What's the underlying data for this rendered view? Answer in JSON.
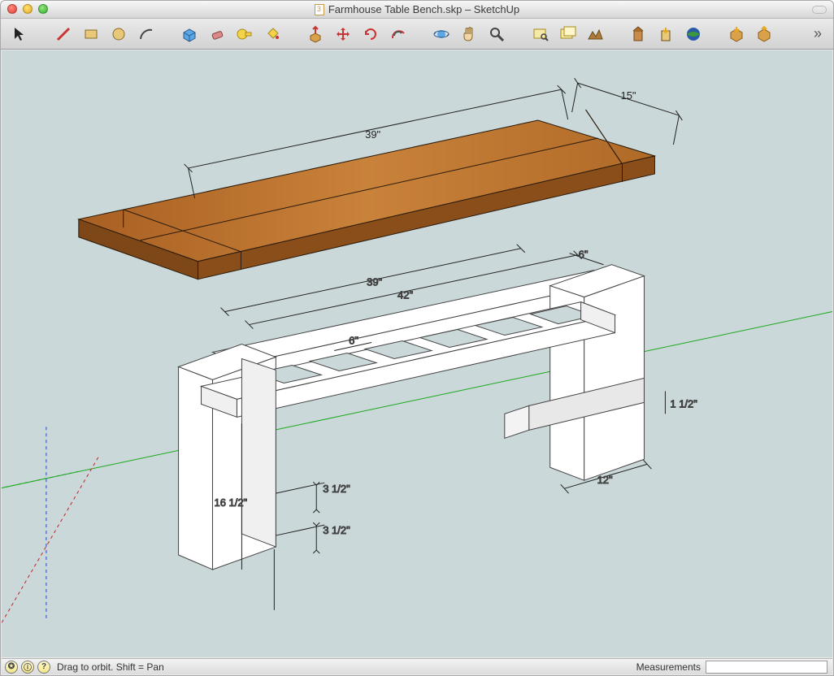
{
  "window": {
    "title": "Farmhouse Table Bench.skp – SketchUp"
  },
  "toolbar": {
    "tools": [
      {
        "name": "select-tool",
        "title": "Select"
      },
      {
        "name": "line-tool",
        "title": "Line"
      },
      {
        "name": "rectangle-tool",
        "title": "Rectangle"
      },
      {
        "name": "circle-tool",
        "title": "Circle"
      },
      {
        "name": "arc-tool",
        "title": "Arc"
      },
      {
        "name": "make-component-tool",
        "title": "Make Component"
      },
      {
        "name": "eraser-tool",
        "title": "Eraser"
      },
      {
        "name": "tape-measure-tool",
        "title": "Tape Measure"
      },
      {
        "name": "paint-bucket-tool",
        "title": "Paint Bucket"
      },
      {
        "name": "push-pull-tool",
        "title": "Push/Pull"
      },
      {
        "name": "move-tool",
        "title": "Move"
      },
      {
        "name": "rotate-tool",
        "title": "Rotate"
      },
      {
        "name": "offset-tool",
        "title": "Offset"
      },
      {
        "name": "orbit-tool",
        "title": "Orbit"
      },
      {
        "name": "pan-tool",
        "title": "Pan"
      },
      {
        "name": "zoom-tool",
        "title": "Zoom"
      },
      {
        "name": "zoom-extents-tool",
        "title": "Zoom Extents"
      },
      {
        "name": "add-location-tool",
        "title": "Add Location"
      },
      {
        "name": "toggle-terrain-tool",
        "title": "Toggle Terrain"
      },
      {
        "name": "add-building-tool",
        "title": "Add Building"
      },
      {
        "name": "photo-textures-tool",
        "title": "Photo Textures"
      },
      {
        "name": "preview-ge-tool",
        "title": "Preview in Google Earth"
      },
      {
        "name": "get-models-tool",
        "title": "Get Models"
      },
      {
        "name": "share-model-tool",
        "title": "Share Model"
      }
    ],
    "separators_after": [
      0,
      4,
      8,
      12,
      15,
      18,
      21
    ]
  },
  "status": {
    "hint": "Drag to orbit.  Shift = Pan",
    "measurements_label": "Measurements",
    "measurements_value": ""
  },
  "scene": {
    "background_color": "#cbd8da",
    "axis_colors": {
      "x": "#c62020",
      "y": "#1aa81a",
      "z": "#2646d0"
    },
    "top": {
      "fill_color": "#c07a2f",
      "fill_dark": "#8a4e1b",
      "edge_color": "#2a1a0a",
      "dim_length_label": "39\"",
      "dim_width_label": "15\""
    },
    "base": {
      "fill_color": "#ffffff",
      "edge_color": "#444444",
      "dims": {
        "top_inner": "39\"",
        "top_outer": "42\"",
        "top_depth": "6\"",
        "slat_spacing": "6\"",
        "leg_height": "16 1/2\"",
        "stretcher_a": "3 1/2\"",
        "stretcher_b": "3 1/2\"",
        "foot_gap": "12\"",
        "rail_thick": "1 1/2\""
      }
    }
  }
}
